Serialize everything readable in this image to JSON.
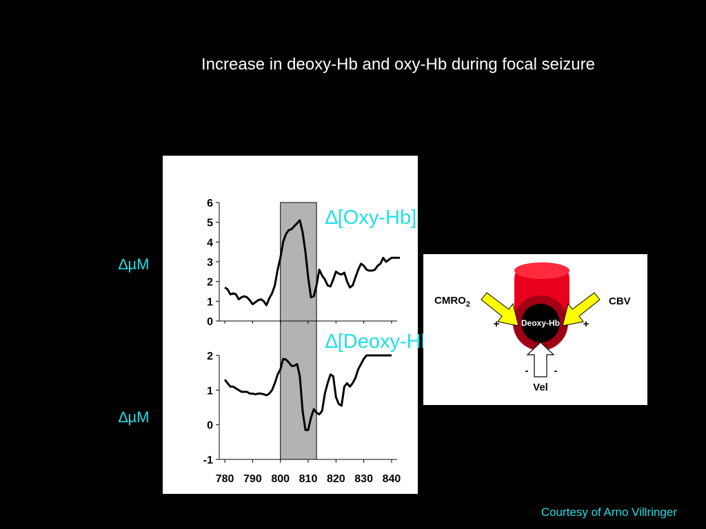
{
  "slide": {
    "title": "Increase in deoxy-Hb and oxy-Hb during focal seizure",
    "courtesy": "Courtesy of Arno Villringer"
  },
  "labels": {
    "oxy": "∆[Oxy-Hb]",
    "deoxy": "∆[Deoxy-Hb]",
    "unit_top": "∆µM",
    "unit_bottom": "∆µM"
  },
  "diagram": {
    "cmro_text": "CMRO",
    "cmro_sub": "2",
    "cbv": "CBV",
    "center": "Deoxy-Hb",
    "vel": "Vel",
    "plus_left": "+",
    "plus_right": "+",
    "minus_left": "-",
    "minus_right": "-",
    "colors": {
      "vessel": "#e8001c",
      "vessel_dark": "#a00016",
      "core": "#000000",
      "arrow": "#ffff00"
    }
  },
  "chart_data": [
    {
      "type": "line",
      "series": [
        {
          "x": [
            780,
            781,
            782,
            783,
            784,
            785,
            786,
            787,
            788,
            789,
            790,
            791,
            792,
            793,
            794,
            795,
            796,
            797,
            798,
            799,
            800,
            801,
            802,
            803,
            804,
            805,
            806,
            807,
            808,
            809,
            810,
            811,
            812,
            813,
            814,
            815,
            816,
            817,
            818,
            819,
            820,
            821,
            822,
            823,
            824,
            825,
            826,
            827,
            828,
            829,
            830,
            831,
            832,
            833,
            834,
            835,
            836,
            837,
            838,
            839,
            840,
            841,
            842,
            843
          ],
          "values": [
            1.7,
            1.6,
            1.35,
            1.4,
            1.35,
            1.1,
            1.2,
            1.25,
            1.2,
            1.05,
            0.85,
            0.95,
            1.05,
            1.1,
            1.0,
            0.8,
            1.15,
            1.4,
            1.8,
            2.6,
            3.2,
            4.0,
            4.4,
            4.6,
            4.65,
            4.8,
            4.95,
            5.1,
            4.5,
            3.5,
            2.2,
            1.2,
            1.25,
            1.8,
            2.6,
            2.3,
            2.1,
            1.8,
            1.75,
            2.1,
            2.5,
            2.4,
            2.35,
            2.45,
            2.0,
            1.7,
            1.8,
            2.2,
            2.6,
            2.9,
            2.8,
            2.6,
            2.55,
            2.55,
            2.6,
            2.8,
            2.9,
            3.2,
            3.0,
            3.1,
            3.2,
            3.2,
            3.2,
            3.2
          ]
        }
      ],
      "xlim": [
        778,
        842
      ],
      "ylim": [
        0,
        6
      ],
      "yticks": [
        "0",
        "1",
        "2",
        "3",
        "4",
        "5",
        "6"
      ],
      "shaded_region": [
        800,
        813
      ]
    },
    {
      "type": "line",
      "series": [
        {
          "x": [
            780,
            781,
            782,
            783,
            784,
            785,
            786,
            787,
            788,
            789,
            790,
            791,
            792,
            793,
            794,
            795,
            796,
            797,
            798,
            799,
            800,
            801,
            802,
            803,
            804,
            805,
            806,
            807,
            808,
            809,
            810,
            811,
            812,
            813,
            814,
            815,
            816,
            817,
            818,
            819,
            820,
            821,
            822,
            823,
            824,
            825,
            826,
            827,
            828,
            829,
            830,
            831,
            832,
            833,
            834,
            835,
            836,
            837,
            838,
            839,
            840
          ],
          "values": [
            1.3,
            1.2,
            1.1,
            1.1,
            1.05,
            1.0,
            0.95,
            0.95,
            0.95,
            0.9,
            0.9,
            0.88,
            0.9,
            0.9,
            0.88,
            0.85,
            0.9,
            1.0,
            1.2,
            1.45,
            1.6,
            1.9,
            1.88,
            1.8,
            1.7,
            1.7,
            1.75,
            1.4,
            0.4,
            -0.15,
            -0.15,
            0.2,
            0.45,
            0.35,
            0.3,
            0.4,
            0.9,
            1.2,
            1.45,
            1.4,
            0.8,
            0.6,
            0.55,
            1.1,
            1.2,
            1.1,
            1.2,
            1.35,
            1.6,
            1.75,
            1.9,
            2.0,
            2.0,
            2.0,
            2.0,
            2.0,
            2.0,
            2.0,
            2.0,
            2.0,
            2.0
          ]
        }
      ],
      "xlim": [
        778,
        842
      ],
      "ylim": [
        -1,
        2
      ],
      "xticks": [
        "780",
        "790",
        "800",
        "810",
        "820",
        "830",
        "840"
      ],
      "yticks": [
        "-1",
        "0",
        "1",
        "2"
      ],
      "shaded_region": [
        800,
        813
      ]
    }
  ]
}
